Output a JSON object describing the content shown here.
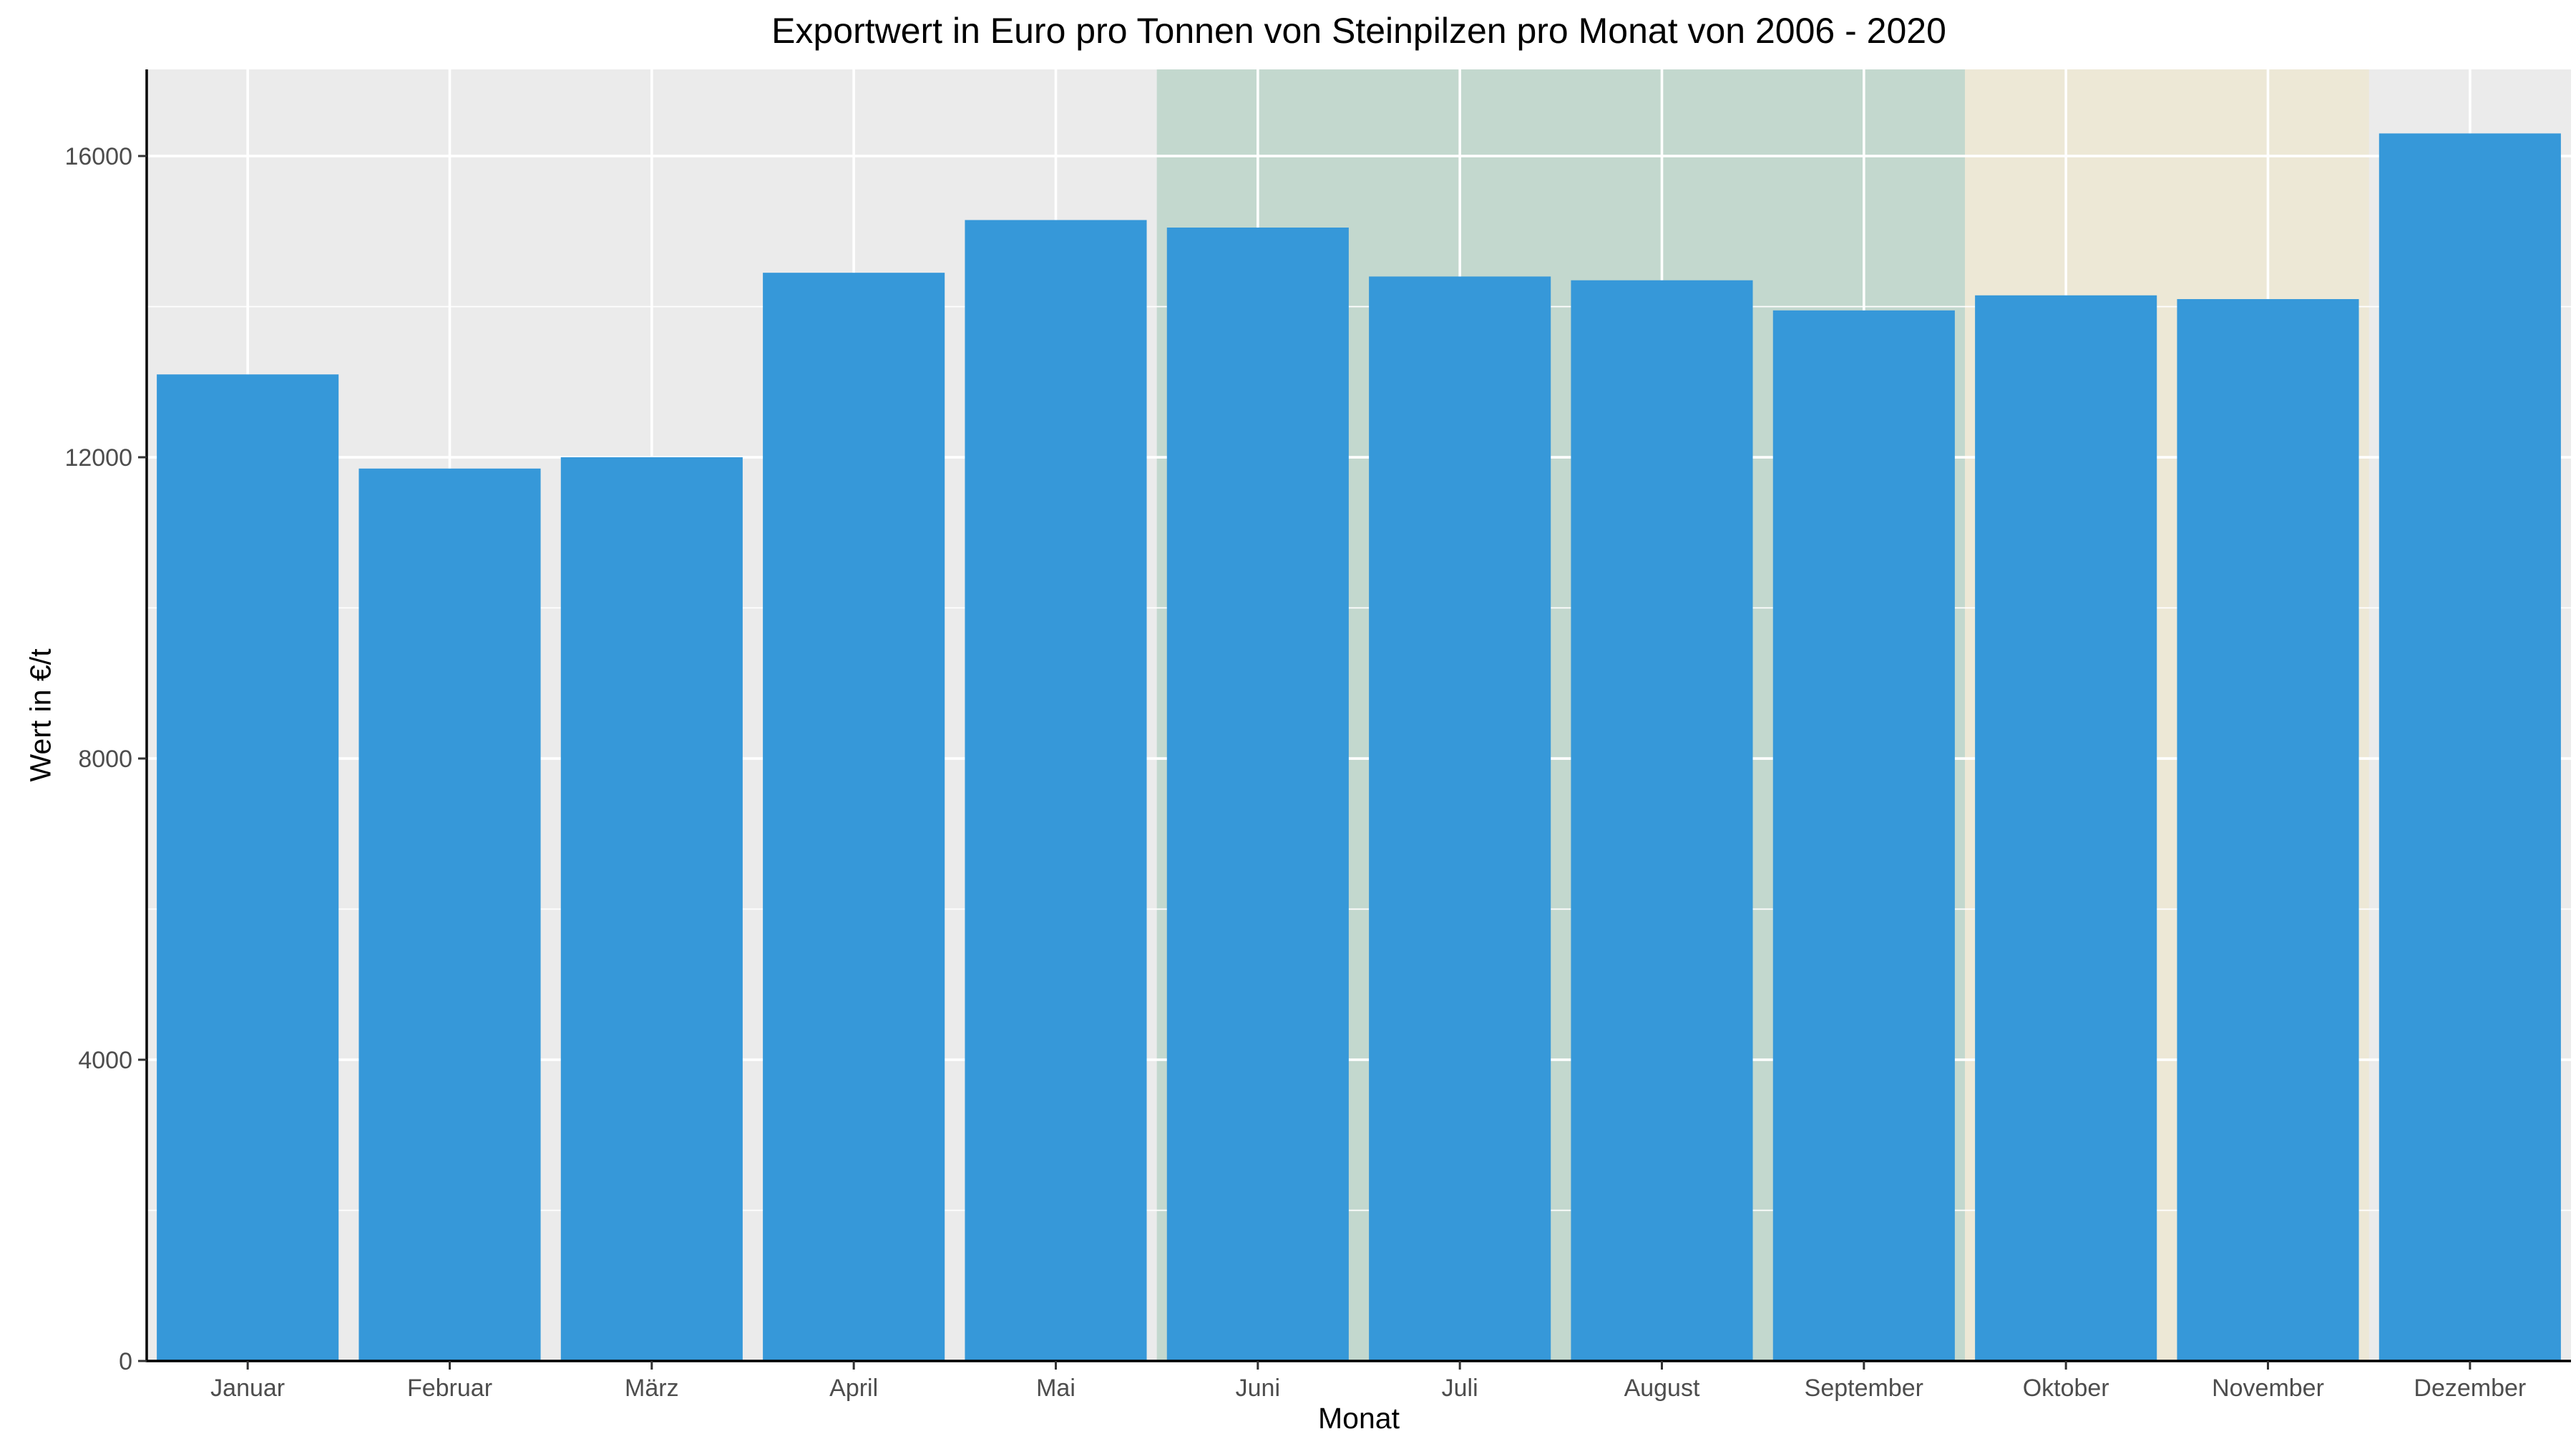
{
  "chart_data": {
    "type": "bar",
    "title": "Exportwert in Euro pro Tonnen von Steinpilzen pro Monat von 2006 - 2020",
    "xlabel": "Monat",
    "ylabel": "Wert in €/t",
    "categories": [
      "Januar",
      "Februar",
      "März",
      "April",
      "Mai",
      "Juni",
      "Juli",
      "August",
      "September",
      "Oktober",
      "November",
      "Dezember"
    ],
    "values": [
      13100,
      11850,
      12000,
      14450,
      15150,
      15050,
      14400,
      14350,
      13950,
      14150,
      14100,
      16300
    ],
    "ylim": [
      0,
      17150
    ],
    "yticks": [
      0,
      4000,
      8000,
      12000,
      16000
    ],
    "grid": true,
    "legend": "none",
    "highlighted_ranges": [
      {
        "from_category": "Juni",
        "to_category": "September",
        "color": "#c3d8ce"
      },
      {
        "from_category": "Oktober",
        "to_category": "November",
        "color": "#ede8d6"
      }
    ],
    "colors": {
      "bar": "#3698d9",
      "panel_background": "#ebebeb",
      "grid": "#ffffff",
      "axis_line": "#000000"
    }
  }
}
